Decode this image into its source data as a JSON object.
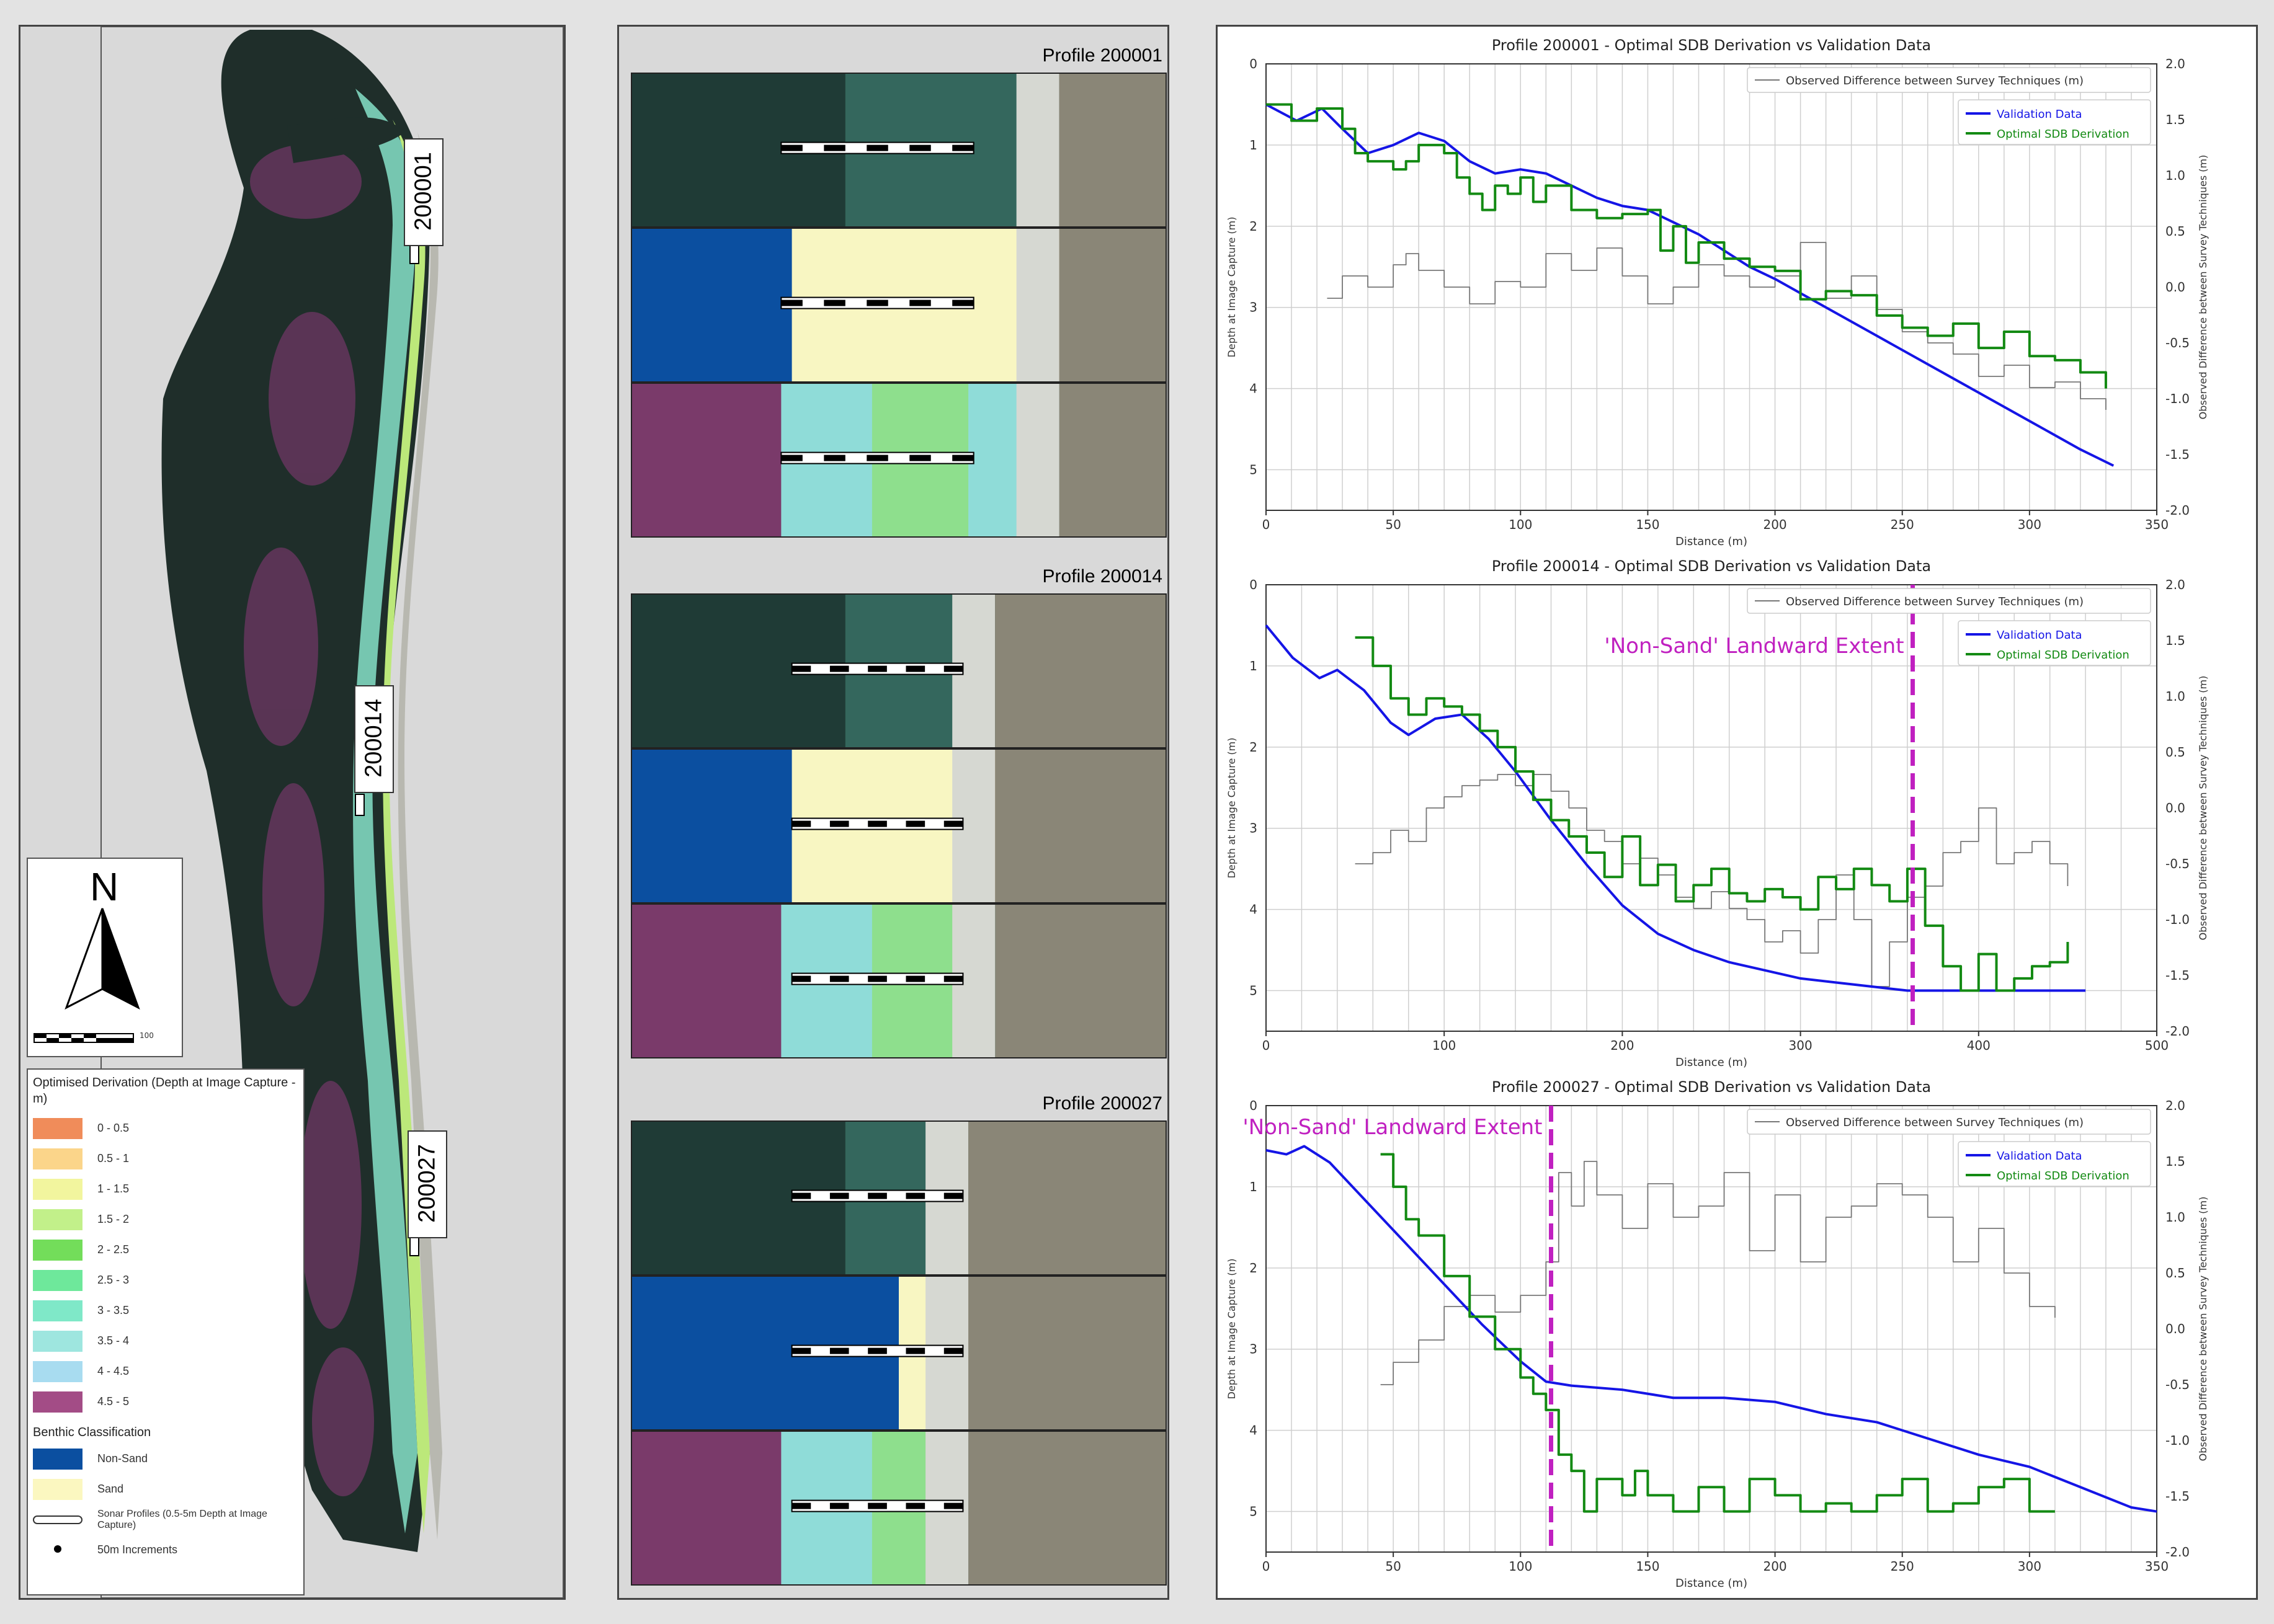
{
  "colors": {
    "water_dark": "#1f2e2a",
    "sand": "#f8f6c2",
    "non_sand": "#0b4fa0",
    "validation": "#1515e6",
    "sdb": "#138a13",
    "difference": "#777777",
    "extent": "#c020c0"
  },
  "map": {
    "profile_labels": [
      "200001",
      "200014",
      "200027"
    ],
    "north_label": "N",
    "scale_unit": "100",
    "legend": {
      "title": "Optimised Derivation (Depth at Image Capture - m)",
      "depth_classes": [
        {
          "label": "0 - 0.5",
          "color": "#f08c5a"
        },
        {
          "label": "0.5 - 1",
          "color": "#fbd58a"
        },
        {
          "label": "1 - 1.5",
          "color": "#f2f59e"
        },
        {
          "label": "1.5 - 2",
          "color": "#c2f08a"
        },
        {
          "label": "2 - 2.5",
          "color": "#73dd5a"
        },
        {
          "label": "2.5 - 3",
          "color": "#6ee89b"
        },
        {
          "label": "3 - 3.5",
          "color": "#7fe8c8"
        },
        {
          "label": "3.5 - 4",
          "color": "#9ee6df"
        },
        {
          "label": "4 - 4.5",
          "color": "#a8dcf0"
        },
        {
          "label": "4.5 - 5",
          "color": "#a34c86"
        }
      ],
      "benthic_title": "Benthic Classification",
      "benthic_classes": [
        {
          "label": "Non-Sand",
          "color": "#0b4fa0"
        },
        {
          "label": "Sand",
          "color": "#fbf7c0"
        }
      ],
      "profile_symbol_label": "Sonar Profiles (0.5-5m Depth at Image Capture)",
      "increment_label": "50m Increments"
    }
  },
  "strips": [
    {
      "title": "Profile 200001"
    },
    {
      "title": "Profile 200014"
    },
    {
      "title": "Profile 200027"
    }
  ],
  "chart_data": [
    {
      "type": "line",
      "title": "Profile 200001 - Optimal SDB Derivation vs Validation Data",
      "xlabel": "Distance (m)",
      "ylabel": "Depth at Image Capture (m)",
      "y2label": "Observed Difference between Survey Techniques (m)",
      "xlim": [
        0,
        350
      ],
      "ylim": [
        0,
        5.5
      ],
      "y2lim": [
        -2.0,
        2.0
      ],
      "x_ticks": [
        "0",
        "50",
        "100",
        "150",
        "200",
        "250",
        "300",
        "350"
      ],
      "y_ticks": [
        "0",
        "1",
        "2",
        "3",
        "4",
        "5"
      ],
      "y2_ticks": [
        "2.0",
        "1.5",
        "1.0",
        "0.5",
        "0.0",
        "-0.5",
        "-1.0",
        "-1.5",
        "-2.0"
      ],
      "legend_difference": "Observed Difference between Survey Techniques (m)",
      "legend_validation": "Validation Data",
      "legend_sdb": "Optimal SDB Derivation",
      "series": [
        {
          "name": "Validation Data",
          "axis": "left",
          "x": [
            0,
            12,
            22,
            30,
            40,
            50,
            60,
            70,
            80,
            90,
            100,
            110,
            120,
            130,
            140,
            150,
            160,
            170,
            180,
            190,
            200,
            220,
            240,
            260,
            280,
            300,
            320,
            333
          ],
          "y": [
            0.5,
            0.7,
            0.55,
            0.8,
            1.1,
            1.0,
            0.85,
            0.95,
            1.2,
            1.35,
            1.3,
            1.35,
            1.5,
            1.65,
            1.75,
            1.8,
            1.95,
            2.1,
            2.3,
            2.5,
            2.65,
            3.0,
            3.35,
            3.7,
            4.05,
            4.4,
            4.75,
            4.95
          ]
        },
        {
          "name": "Optimal SDB Derivation",
          "axis": "left",
          "x": [
            0,
            10,
            20,
            30,
            35,
            40,
            50,
            55,
            60,
            70,
            75,
            80,
            85,
            90,
            95,
            100,
            105,
            110,
            120,
            130,
            140,
            150,
            155,
            160,
            165,
            170,
            180,
            190,
            200,
            210,
            220,
            230,
            240,
            250,
            260,
            270,
            280,
            290,
            300,
            310,
            320,
            330
          ],
          "y": [
            0.5,
            0.7,
            0.55,
            0.8,
            1.1,
            1.2,
            1.3,
            1.2,
            1.0,
            1.1,
            1.4,
            1.6,
            1.8,
            1.5,
            1.6,
            1.4,
            1.7,
            1.5,
            1.8,
            1.9,
            1.85,
            1.8,
            2.3,
            2.0,
            2.45,
            2.2,
            2.4,
            2.5,
            2.55,
            2.9,
            2.8,
            2.85,
            3.1,
            3.25,
            3.35,
            3.2,
            3.5,
            3.3,
            3.6,
            3.65,
            3.8,
            4.0
          ]
        },
        {
          "name": "Observed Difference between Survey Techniques (m)",
          "axis": "right",
          "x": [
            24,
            30,
            40,
            50,
            55,
            60,
            70,
            80,
            90,
            100,
            110,
            120,
            130,
            140,
            150,
            160,
            170,
            180,
            190,
            200,
            210,
            220,
            230,
            240,
            250,
            260,
            270,
            280,
            290,
            300,
            310,
            320,
            330
          ],
          "y": [
            -0.1,
            0.1,
            0.0,
            0.2,
            0.3,
            0.15,
            0.0,
            -0.15,
            0.05,
            0.0,
            0.3,
            0.15,
            0.35,
            0.1,
            -0.15,
            0.0,
            0.2,
            0.1,
            0.0,
            0.1,
            0.4,
            -0.1,
            0.1,
            -0.2,
            -0.4,
            -0.5,
            -0.6,
            -0.8,
            -0.7,
            -0.9,
            -0.85,
            -1.0,
            -1.1
          ]
        }
      ]
    },
    {
      "type": "line",
      "title": "Profile 200014 - Optimal SDB Derivation vs Validation Data",
      "xlabel": "Distance (m)",
      "ylabel": "Depth at Image Capture (m)",
      "y2label": "Observed Difference between Survey Techniques (m)",
      "xlim": [
        0,
        500
      ],
      "ylim": [
        0,
        5.5
      ],
      "y2lim": [
        -2.0,
        2.0
      ],
      "x_ticks": [
        "0",
        "100",
        "200",
        "300",
        "400",
        "500"
      ],
      "y_ticks": [
        "0",
        "1",
        "2",
        "3",
        "4",
        "5"
      ],
      "y2_ticks": [
        "2.0",
        "1.5",
        "1.0",
        "0.5",
        "0.0",
        "-0.5",
        "-1.0",
        "-1.5",
        "-2.0"
      ],
      "legend_difference": "Observed Difference between Survey Techniques (m)",
      "legend_validation": "Validation Data",
      "legend_sdb": "Optimal SDB Derivation",
      "annotation": "'Non-Sand' Landward Extent",
      "annotation_x": 363,
      "series": [
        {
          "name": "Validation Data",
          "axis": "left",
          "x": [
            0,
            15,
            30,
            40,
            55,
            70,
            80,
            95,
            110,
            125,
            140,
            160,
            180,
            200,
            220,
            240,
            260,
            280,
            300,
            320,
            340,
            360,
            380,
            400,
            420,
            440,
            460
          ],
          "y": [
            0.5,
            0.9,
            1.15,
            1.05,
            1.3,
            1.7,
            1.85,
            1.65,
            1.6,
            1.9,
            2.3,
            2.9,
            3.45,
            3.95,
            4.3,
            4.5,
            4.65,
            4.75,
            4.85,
            4.9,
            4.95,
            5.0,
            5.0,
            5.0,
            5.0,
            5.0,
            5.0
          ]
        },
        {
          "name": "Optimal SDB Derivation",
          "axis": "left",
          "x": [
            50,
            60,
            70,
            80,
            90,
            100,
            110,
            120,
            130,
            140,
            150,
            160,
            170,
            180,
            190,
            200,
            210,
            220,
            230,
            240,
            250,
            260,
            270,
            280,
            290,
            300,
            310,
            320,
            330,
            340,
            350,
            360,
            370,
            380,
            390,
            400,
            410,
            420,
            430,
            440,
            450
          ],
          "y": [
            0.65,
            1.0,
            1.4,
            1.6,
            1.4,
            1.5,
            1.6,
            1.8,
            2.0,
            2.3,
            2.65,
            2.9,
            3.1,
            3.3,
            3.6,
            3.1,
            3.7,
            3.45,
            3.9,
            3.7,
            3.5,
            3.8,
            3.9,
            3.75,
            3.85,
            4.0,
            3.6,
            3.75,
            3.5,
            3.7,
            3.9,
            3.5,
            4.2,
            4.7,
            5.0,
            4.55,
            5.0,
            4.85,
            4.7,
            4.65,
            4.4
          ]
        },
        {
          "name": "Observed Difference between Survey Techniques (m)",
          "axis": "right",
          "x": [
            50,
            60,
            70,
            80,
            90,
            100,
            110,
            120,
            130,
            140,
            150,
            160,
            170,
            180,
            190,
            200,
            210,
            220,
            230,
            240,
            250,
            260,
            270,
            280,
            290,
            300,
            310,
            320,
            330,
            340,
            350,
            360,
            370,
            380,
            390,
            400,
            410,
            420,
            430,
            440,
            450
          ],
          "y": [
            -0.5,
            -0.4,
            -0.2,
            -0.3,
            0.0,
            0.1,
            0.2,
            0.25,
            0.3,
            0.2,
            0.3,
            0.15,
            0.0,
            -0.2,
            -0.3,
            -0.5,
            -0.45,
            -0.6,
            -0.8,
            -0.9,
            -0.75,
            -0.9,
            -1.0,
            -1.2,
            -1.1,
            -1.3,
            -1.0,
            -0.6,
            -1.0,
            -1.6,
            -1.2,
            -0.8,
            -0.7,
            -0.4,
            -0.3,
            0.0,
            -0.5,
            -0.4,
            -0.3,
            -0.5,
            -0.7
          ]
        }
      ]
    },
    {
      "type": "line",
      "title": "Profile 200027 - Optimal SDB Derivation vs Validation Data",
      "xlabel": "Distance (m)",
      "ylabel": "Depth at Image Capture (m)",
      "y2label": "Observed Difference between Survey Techniques (m)",
      "xlim": [
        0,
        350
      ],
      "ylim": [
        0,
        5.5
      ],
      "y2lim": [
        -2.0,
        2.0
      ],
      "x_ticks": [
        "0",
        "50",
        "100",
        "150",
        "200",
        "250",
        "300",
        "350"
      ],
      "y_ticks": [
        "0",
        "1",
        "2",
        "3",
        "4",
        "5"
      ],
      "y2_ticks": [
        "2.0",
        "1.5",
        "1.0",
        "0.5",
        "0.0",
        "-0.5",
        "-1.0",
        "-1.5",
        "-2.0"
      ],
      "legend_difference": "Observed Difference between Survey Techniques (m)",
      "legend_validation": "Validation Data",
      "legend_sdb": "Optimal SDB Derivation",
      "annotation": "'Non-Sand' Landward Extent",
      "annotation_x": 112,
      "series": [
        {
          "name": "Validation Data",
          "axis": "left",
          "x": [
            0,
            8,
            15,
            25,
            40,
            55,
            70,
            85,
            100,
            110,
            120,
            140,
            160,
            180,
            200,
            220,
            240,
            260,
            280,
            300,
            320,
            340,
            350
          ],
          "y": [
            0.55,
            0.6,
            0.5,
            0.7,
            1.2,
            1.7,
            2.2,
            2.7,
            3.15,
            3.4,
            3.45,
            3.5,
            3.6,
            3.6,
            3.65,
            3.8,
            3.9,
            4.1,
            4.3,
            4.45,
            4.7,
            4.95,
            5.0
          ]
        },
        {
          "name": "Optimal SDB Derivation",
          "axis": "left",
          "x": [
            45,
            50,
            55,
            60,
            70,
            80,
            90,
            100,
            105,
            110,
            115,
            120,
            125,
            130,
            140,
            145,
            150,
            160,
            170,
            180,
            190,
            200,
            210,
            220,
            230,
            240,
            250,
            260,
            270,
            280,
            290,
            300,
            310
          ],
          "y": [
            0.6,
            1.0,
            1.4,
            1.6,
            2.1,
            2.6,
            3.0,
            3.35,
            3.55,
            3.75,
            4.3,
            4.5,
            5.0,
            4.6,
            4.8,
            4.5,
            4.8,
            5.0,
            4.7,
            5.0,
            4.6,
            4.8,
            5.0,
            4.9,
            5.0,
            4.8,
            4.6,
            5.0,
            4.9,
            4.7,
            4.6,
            5.0,
            5.0
          ]
        },
        {
          "name": "Observed Difference between Survey Techniques (m)",
          "axis": "right",
          "x": [
            45,
            50,
            60,
            70,
            80,
            90,
            100,
            110,
            115,
            120,
            125,
            130,
            140,
            150,
            160,
            170,
            180,
            190,
            200,
            210,
            220,
            230,
            240,
            250,
            260,
            270,
            280,
            290,
            300,
            310
          ],
          "y": [
            -0.5,
            -0.3,
            -0.1,
            0.2,
            0.3,
            0.15,
            0.3,
            0.6,
            1.4,
            1.1,
            1.5,
            1.2,
            0.9,
            1.3,
            1.0,
            1.1,
            1.4,
            0.7,
            1.2,
            0.6,
            1.0,
            1.1,
            1.3,
            1.2,
            1.0,
            0.6,
            0.9,
            0.5,
            0.2,
            0.1
          ]
        }
      ]
    }
  ]
}
